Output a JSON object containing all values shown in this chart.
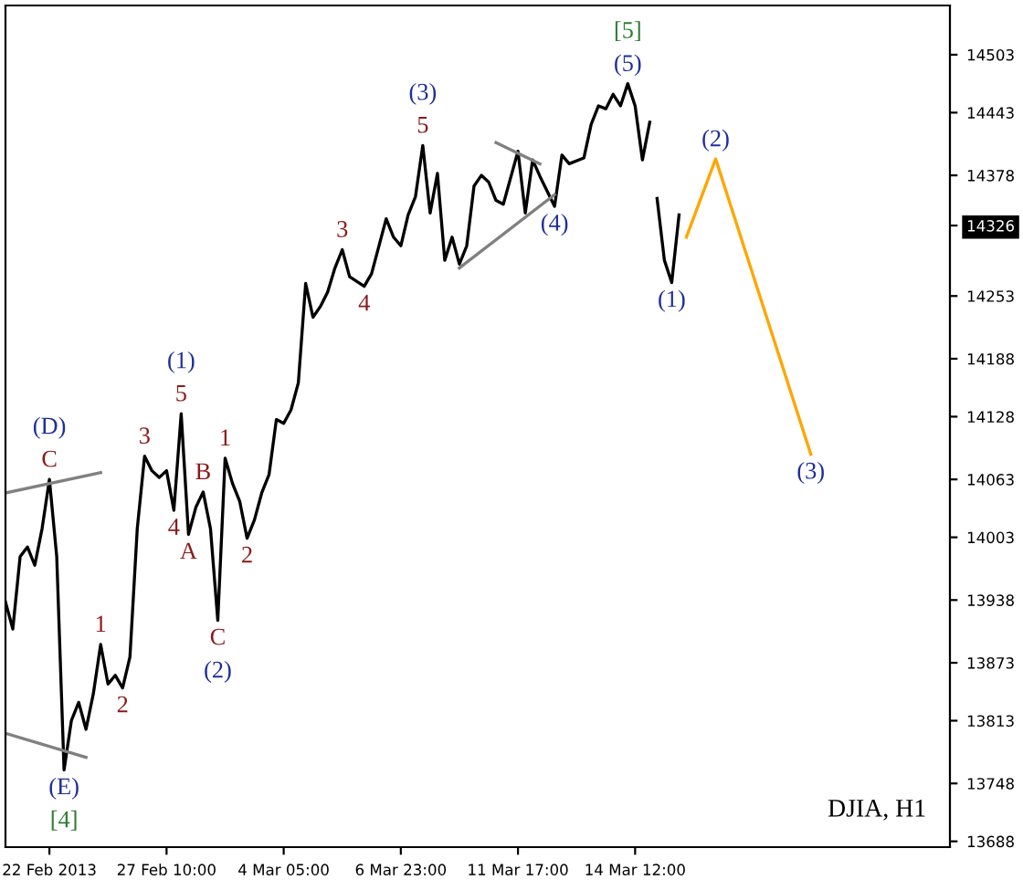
{
  "chart_data": {
    "type": "line",
    "categories": [
      null,
      null,
      null,
      null,
      null,
      null,
      "22 Feb 2013",
      null,
      null,
      null,
      null,
      null,
      null,
      null,
      null,
      null,
      null,
      null,
      null,
      null,
      null,
      null,
      "27 Feb 10:00",
      null,
      null,
      null,
      null,
      null,
      null,
      null,
      null,
      null,
      null,
      null,
      null,
      null,
      null,
      null,
      "4 Mar 05:00",
      null,
      null,
      null,
      null,
      null,
      null,
      null,
      null,
      null,
      null,
      null,
      null,
      null,
      null,
      null,
      "6 Mar 23:00",
      null,
      null,
      null,
      null,
      null,
      null,
      null,
      null,
      null,
      null,
      null,
      null,
      null,
      null,
      null,
      "11 Mar 17:00",
      null,
      null,
      null,
      null,
      null,
      null,
      null,
      null,
      null,
      null,
      null,
      null,
      null,
      null,
      null,
      "14 Mar 12:00",
      null,
      null,
      null,
      null,
      null,
      null,
      null,
      null,
      null,
      null,
      null,
      null,
      null,
      null,
      null,
      null,
      null,
      null,
      null,
      null,
      null,
      null,
      null,
      null,
      null,
      null,
      null,
      null,
      null,
      null,
      null,
      null,
      null,
      null,
      null,
      null,
      null,
      null,
      null,
      null,
      null,
      null,
      null
    ],
    "ylim": [
      13682,
      14554
    ],
    "yticks": [
      13688,
      13748,
      13813,
      13873,
      13938,
      14003,
      14063,
      14128,
      14188,
      14253,
      {
        "value": 14326,
        "label": "14326"
      },
      14378,
      14443,
      14503
    ],
    "grid": false,
    "legend": false,
    "marker": "none",
    "line_style": "solid",
    "series": [
      {
        "color": "#000000",
        "values": [
          13936,
          13908,
          13983,
          13993,
          13974,
          14012,
          14063,
          13983,
          13762,
          13813,
          13832,
          13804,
          13841,
          13892,
          13851,
          13860,
          13847,
          13879,
          14012,
          14087,
          14072,
          14065,
          14072,
          14031,
          14131,
          14006,
          14034,
          14050,
          14012,
          13917,
          14085,
          14059,
          14040,
          14002,
          14021,
          14049,
          14068,
          14125,
          14121,
          14135,
          14163,
          14266,
          14231,
          14242,
          14257,
          14282,
          14301,
          14273,
          14268,
          14263,
          14276,
          null,
          14333,
          14314,
          14305,
          14337,
          14356,
          14409,
          14339,
          14380,
          14290,
          14314,
          14286,
          14305,
          14367,
          14378,
          14371,
          14352,
          14348,
          null,
          14403,
          14339,
          14394,
          14377,
          null,
          14346,
          14399,
          14390,
          null,
          14396,
          14431,
          14450,
          14447,
          14462,
          14450,
          14473,
          14450,
          14394,
          14433,
          null,
          null,
          null,
          null,
          null,
          null,
          null,
          null,
          null,
          null,
          null,
          null,
          null,
          null,
          null,
          null,
          null,
          null,
          null,
          null,
          null,
          null,
          null,
          null,
          null,
          null,
          null,
          null,
          null,
          null,
          null,
          null,
          null,
          null,
          null,
          null,
          null,
          null,
          null,
          null,
          null
        ]
      },
      {
        "color": "#000000",
        "values": [
          null,
          null,
          null,
          null,
          null,
          null,
          null,
          null,
          null,
          null,
          null,
          null,
          null,
          null,
          null,
          null,
          null,
          null,
          null,
          null,
          null,
          null,
          null,
          null,
          null,
          null,
          null,
          null,
          null,
          null,
          null,
          null,
          null,
          null,
          null,
          null,
          null,
          null,
          null,
          null,
          null,
          null,
          null,
          null,
          null,
          null,
          null,
          null,
          null,
          null,
          null,
          null,
          null,
          null,
          null,
          null,
          null,
          null,
          null,
          null,
          null,
          null,
          null,
          null,
          null,
          null,
          null,
          null,
          null,
          null,
          null,
          null,
          null,
          null,
          null,
          null,
          null,
          null,
          null,
          null,
          null,
          null,
          null,
          null,
          null,
          null,
          null,
          null,
          null,
          14354,
          14290,
          14267,
          14337,
          null,
          null,
          null,
          null,
          null,
          null,
          null,
          null,
          null,
          null,
          null,
          null,
          null,
          null,
          null,
          null,
          null,
          null,
          null,
          null,
          null,
          null,
          null,
          null,
          null,
          null,
          null,
          null,
          null,
          null,
          null,
          null,
          null,
          null,
          null,
          null,
          null
        ]
      },
      {
        "color": "#ffa500",
        "values": [
          null,
          null,
          null,
          null,
          null,
          null,
          null,
          null,
          null,
          null,
          null,
          null,
          null,
          null,
          null,
          null,
          null,
          null,
          null,
          null,
          null,
          null,
          null,
          null,
          null,
          null,
          null,
          null,
          null,
          null,
          null,
          null,
          null,
          null,
          null,
          null,
          null,
          null,
          null,
          null,
          null,
          null,
          null,
          null,
          null,
          null,
          null,
          null,
          null,
          null,
          null,
          null,
          null,
          null,
          null,
          null,
          null,
          null,
          null,
          null,
          null,
          null,
          null,
          null,
          null,
          null,
          null,
          null,
          null,
          null,
          null,
          null,
          null,
          null,
          null,
          null,
          null,
          null,
          null,
          null,
          null,
          null,
          null,
          null,
          null,
          null,
          null,
          null,
          null,
          null,
          null,
          null,
          null,
          14314,
          null,
          null,
          null,
          14395,
          null,
          null,
          null,
          null,
          null,
          null,
          null,
          null,
          null,
          null,
          null,
          null,
          14089,
          null,
          null,
          null,
          null,
          null,
          null,
          null,
          null,
          null,
          null,
          null,
          null,
          null,
          null,
          null,
          null,
          null,
          null,
          null
        ]
      },
      {
        "color": "#808080",
        "values": [
          14049,
          null,
          null,
          null,
          null,
          null,
          null,
          null,
          null,
          null,
          null,
          null,
          null,
          14070,
          null,
          null,
          null,
          null,
          null,
          null,
          null,
          null,
          null,
          null,
          null,
          null,
          null,
          null,
          null,
          null,
          null,
          null,
          null,
          null,
          null,
          null,
          null,
          null,
          null,
          null,
          null,
          null,
          null,
          null,
          null,
          null,
          null,
          null,
          null,
          null,
          null,
          null,
          null,
          null,
          null,
          null,
          null,
          null,
          null,
          null,
          null,
          null,
          null,
          null,
          null,
          null,
          null,
          null,
          null,
          null,
          null,
          null,
          null,
          null,
          null,
          null,
          null,
          null,
          null,
          null,
          null,
          null,
          null,
          null,
          null,
          null,
          null,
          null,
          null,
          null,
          null,
          null,
          null,
          null,
          null,
          null,
          null,
          null,
          null,
          null,
          null,
          null,
          null,
          null,
          null,
          null,
          null,
          null,
          null,
          null,
          null,
          null,
          null,
          null,
          null,
          null,
          null,
          null,
          null,
          null,
          null,
          null,
          null,
          null,
          null,
          null,
          null,
          null,
          null,
          null
        ]
      },
      {
        "color": "#808080",
        "values": [
          13800,
          null,
          null,
          null,
          null,
          null,
          null,
          null,
          null,
          null,
          null,
          13775,
          null,
          null,
          null,
          null,
          null,
          null,
          null,
          null,
          null,
          null,
          null,
          null,
          null,
          null,
          null,
          null,
          null,
          null,
          null,
          null,
          null,
          null,
          null,
          null,
          null,
          null,
          null,
          null,
          null,
          null,
          null,
          null,
          null,
          null,
          null,
          null,
          null,
          null,
          null,
          null,
          null,
          null,
          null,
          null,
          null,
          null,
          null,
          null,
          null,
          null,
          null,
          null,
          null,
          null,
          null,
          null,
          null,
          null,
          null,
          null,
          null,
          null,
          null,
          null,
          null,
          null,
          null,
          null,
          null,
          null,
          null,
          null,
          null,
          null,
          null,
          null,
          null,
          null,
          null,
          null,
          null,
          null,
          null,
          null,
          null,
          null,
          null,
          null,
          null,
          null,
          null,
          null,
          null,
          null,
          null,
          null,
          null,
          null,
          null,
          null,
          null,
          null,
          null,
          null,
          null,
          null,
          null,
          null,
          null,
          null,
          null,
          null,
          null,
          null,
          null,
          null,
          null,
          null
        ]
      },
      {
        "color": "#808080",
        "values": [
          null,
          null,
          null,
          null,
          null,
          null,
          null,
          null,
          null,
          null,
          null,
          null,
          null,
          null,
          null,
          null,
          null,
          null,
          null,
          null,
          null,
          null,
          null,
          null,
          null,
          null,
          null,
          null,
          null,
          null,
          null,
          null,
          null,
          null,
          null,
          null,
          null,
          null,
          null,
          null,
          null,
          null,
          null,
          null,
          null,
          null,
          null,
          null,
          null,
          null,
          null,
          null,
          null,
          null,
          null,
          null,
          null,
          null,
          null,
          null,
          null,
          null,
          14282,
          null,
          null,
          null,
          null,
          null,
          null,
          null,
          null,
          null,
          null,
          null,
          null,
          14358,
          null,
          null,
          null,
          null,
          null,
          null,
          null,
          null,
          null,
          null,
          null,
          null,
          null,
          null,
          null,
          null,
          null,
          null,
          null,
          null,
          null,
          null,
          null,
          null,
          null,
          null,
          null,
          null,
          null,
          null,
          null,
          null,
          null,
          null,
          null,
          null,
          null,
          null,
          null,
          null,
          null,
          null,
          null,
          null,
          null,
          null,
          null,
          null,
          null,
          null,
          null,
          null,
          null,
          null
        ]
      },
      {
        "color": "#808080",
        "values": [
          null,
          null,
          null,
          null,
          null,
          null,
          null,
          null,
          null,
          null,
          null,
          null,
          null,
          null,
          null,
          null,
          null,
          null,
          null,
          null,
          null,
          null,
          null,
          null,
          null,
          null,
          null,
          null,
          null,
          null,
          null,
          null,
          null,
          null,
          null,
          null,
          null,
          null,
          null,
          null,
          null,
          null,
          null,
          null,
          null,
          null,
          null,
          null,
          null,
          null,
          null,
          null,
          null,
          null,
          null,
          null,
          null,
          null,
          null,
          null,
          null,
          null,
          null,
          null,
          null,
          null,
          null,
          14412,
          null,
          null,
          null,
          null,
          null,
          14390,
          null,
          null,
          null,
          null,
          null,
          null,
          null,
          null,
          null,
          null,
          null,
          null,
          null,
          null,
          null,
          null,
          null,
          null,
          null,
          null,
          null,
          null,
          null,
          null,
          null,
          null,
          null,
          null,
          null,
          null,
          null,
          null,
          null,
          null,
          null,
          null,
          null,
          null,
          null,
          null,
          null,
          null,
          null,
          null,
          null,
          null,
          null,
          null,
          null,
          null,
          null,
          null,
          null,
          null,
          null,
          null
        ]
      }
    ],
    "annotations": [
      {
        "text": "(D)\nC",
        "y": 14063
      },
      {
        "text": "(E)\n[4]",
        "y": 13762
      },
      {
        "text": "1",
        "y": 13892
      },
      {
        "text": "2",
        "y": 13847
      },
      {
        "text": "3",
        "y": 14087
      },
      {
        "text": "4",
        "y": 14031
      },
      {
        "text": "(1)\n5",
        "y": 14131
      },
      {
        "text": "A",
        "y": 14006
      },
      {
        "text": "B",
        "y": 14050
      },
      {
        "text": "C\n(2)",
        "y": 13917
      },
      {
        "text": "1",
        "y": 14085
      },
      {
        "text": "2",
        "y": 14002
      },
      {
        "text": "3",
        "y": 14301
      },
      {
        "text": "4",
        "y": 14263
      },
      {
        "text": "(3)\n5",
        "y": 14409
      },
      {
        "text": "(4)",
        "y": 14346
      },
      {
        "text": "[5]\n(5)",
        "y": 14473
      },
      {
        "text": "(1)",
        "y": 14267
      },
      {
        "text": "(2)",
        "y": 14395
      },
      {
        "text": "(3)",
        "y": 14089
      },
      "DJIA, H1"
    ]
  }
}
